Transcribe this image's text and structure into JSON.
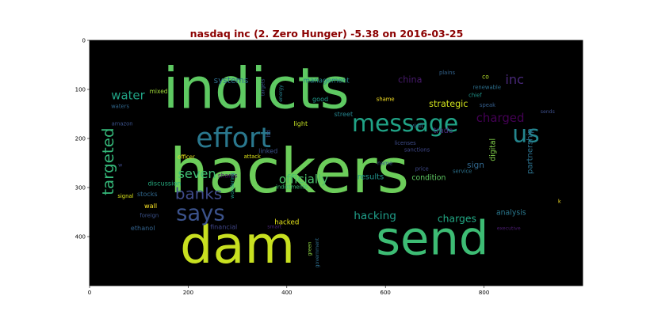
{
  "chart_data": {
    "type": "wordcloud",
    "title": "nasdaq inc (2. Zero Hunger) -5.38 on 2016-03-25",
    "title_color": "#8b0000",
    "background": "#000000",
    "grid": false,
    "xlim": [
      0,
      1000
    ],
    "ylim": [
      500,
      0
    ],
    "x_ticks": [
      0,
      200,
      400,
      600,
      800
    ],
    "y_ticks": [
      0,
      100,
      200,
      300,
      400
    ],
    "words": [
      {
        "text": "indicts",
        "x": 338,
        "y": 98,
        "size": 115,
        "color": "#5ec962",
        "rotate": false
      },
      {
        "text": "hackers",
        "x": 405,
        "y": 268,
        "size": 125,
        "color": "#6ccd5a",
        "rotate": false
      },
      {
        "text": "dam",
        "x": 300,
        "y": 418,
        "size": 105,
        "color": "#c8e020",
        "rotate": false
      },
      {
        "text": "send",
        "x": 695,
        "y": 403,
        "size": 95,
        "color": "#3dbc74",
        "rotate": false
      },
      {
        "text": "effort",
        "x": 292,
        "y": 200,
        "size": 56,
        "color": "#2a788e",
        "rotate": false
      },
      {
        "text": "message",
        "x": 640,
        "y": 170,
        "size": 48,
        "color": "#20a386",
        "rotate": false
      },
      {
        "text": "us",
        "x": 885,
        "y": 192,
        "size": 48,
        "color": "#24868e",
        "rotate": false
      },
      {
        "text": "says",
        "x": 225,
        "y": 353,
        "size": 44,
        "color": "#3b528b",
        "rotate": false
      },
      {
        "text": "banks",
        "x": 221,
        "y": 313,
        "size": 32,
        "color": "#3e4a89",
        "rotate": false
      },
      {
        "text": "targeted",
        "x": 38,
        "y": 247,
        "size": 32,
        "color": "#35b779",
        "rotate": true
      },
      {
        "text": "seven",
        "x": 218,
        "y": 272,
        "size": 26,
        "color": "#3fbc73",
        "rotate": false
      },
      {
        "text": "charged",
        "x": 833,
        "y": 158,
        "size": 24,
        "color": "#440154",
        "rotate": false
      },
      {
        "text": "inc",
        "x": 862,
        "y": 80,
        "size": 26,
        "color": "#482878",
        "rotate": false
      },
      {
        "text": "water",
        "x": 78,
        "y": 112,
        "size": 24,
        "color": "#20a486",
        "rotate": false
      },
      {
        "text": "officially",
        "x": 434,
        "y": 283,
        "size": 24,
        "color": "#4ac16d",
        "rotate": false
      },
      {
        "text": "hacking",
        "x": 579,
        "y": 358,
        "size": 22,
        "color": "#1f9e89",
        "rotate": false
      },
      {
        "text": "charges",
        "x": 745,
        "y": 363,
        "size": 20,
        "color": "#22a884",
        "rotate": false
      },
      {
        "text": "strategic",
        "x": 728,
        "y": 130,
        "size": 18,
        "color": "#d0e11c",
        "rotate": false
      },
      {
        "text": "systems",
        "x": 287,
        "y": 82,
        "size": 17,
        "color": "#2e6e8e",
        "rotate": false
      },
      {
        "text": "management",
        "x": 480,
        "y": 83,
        "size": 14,
        "color": "#26828e",
        "rotate": false
      },
      {
        "text": "china",
        "x": 650,
        "y": 81,
        "size": 18,
        "color": "#481a6c",
        "rotate": false
      },
      {
        "text": "results",
        "x": 570,
        "y": 279,
        "size": 16,
        "color": "#20938c",
        "rotate": false
      },
      {
        "text": "condition",
        "x": 688,
        "y": 281,
        "size": 15,
        "color": "#5ec962",
        "rotate": false
      },
      {
        "text": "partnership",
        "x": 894,
        "y": 226,
        "size": 16,
        "color": "#2c728e",
        "rotate": true
      },
      {
        "text": "sign",
        "x": 783,
        "y": 255,
        "size": 17,
        "color": "#31688e",
        "rotate": false
      },
      {
        "text": "digital",
        "x": 818,
        "y": 223,
        "size": 15,
        "color": "#84d44b",
        "rotate": true
      },
      {
        "text": "analysis",
        "x": 855,
        "y": 352,
        "size": 15,
        "color": "#2a788e",
        "rotate": false
      },
      {
        "text": "trade",
        "x": 717,
        "y": 185,
        "size": 15,
        "color": "#472d7b",
        "rotate": false
      },
      {
        "text": "good",
        "x": 468,
        "y": 119,
        "size": 13,
        "color": "#1f9a8a",
        "rotate": false
      },
      {
        "text": "hacked",
        "x": 400,
        "y": 372,
        "size": 14,
        "color": "#e5e419",
        "rotate": false
      },
      {
        "text": "ethanol",
        "x": 108,
        "y": 382,
        "size": 13,
        "color": "#33638d",
        "rotate": false
      },
      {
        "text": "financial",
        "x": 272,
        "y": 380,
        "size": 13,
        "color": "#404688",
        "rotate": false
      },
      {
        "text": "stocks",
        "x": 117,
        "y": 313,
        "size": 13,
        "color": "#31688e",
        "rotate": false
      },
      {
        "text": "discussion",
        "x": 152,
        "y": 291,
        "size": 13,
        "color": "#26ad81",
        "rotate": false
      },
      {
        "text": "wall",
        "x": 124,
        "y": 337,
        "size": 13,
        "color": "#fde725",
        "rotate": false
      },
      {
        "text": "street",
        "x": 515,
        "y": 150,
        "size": 13,
        "color": "#25848e",
        "rotate": false
      },
      {
        "text": "linked",
        "x": 362,
        "y": 225,
        "size": 13,
        "color": "#3b528b",
        "rotate": false
      },
      {
        "text": "light",
        "x": 428,
        "y": 169,
        "size": 13,
        "color": "#c2df23",
        "rotate": false
      },
      {
        "text": "visit",
        "x": 664,
        "y": 173,
        "size": 13,
        "color": "#2e6f8e",
        "rotate": false
      },
      {
        "text": "mixed",
        "x": 140,
        "y": 104,
        "size": 12,
        "color": "#a0da39",
        "rotate": false
      },
      {
        "text": "co",
        "x": 803,
        "y": 74,
        "size": 12,
        "color": "#b5de2b",
        "rotate": false
      },
      {
        "text": "shares",
        "x": 280,
        "y": 276,
        "size": 12,
        "color": "#471164",
        "rotate": false
      },
      {
        "text": "ltd",
        "x": 363,
        "y": 190,
        "size": 11,
        "color": "#3b528b",
        "rotate": true
      },
      {
        "text": "energy",
        "x": 388,
        "y": 108,
        "size": 10,
        "color": "#27808e",
        "rotate": true
      },
      {
        "text": "targets",
        "x": 352,
        "y": 96,
        "size": 10,
        "color": "#39568c",
        "rotate": true
      },
      {
        "text": "plains",
        "x": 725,
        "y": 66,
        "size": 11,
        "color": "#33638d",
        "rotate": false
      },
      {
        "text": "renewable",
        "x": 806,
        "y": 96,
        "size": 11,
        "color": "#2d708e",
        "rotate": false
      },
      {
        "text": "chief",
        "x": 782,
        "y": 112,
        "size": 11,
        "color": "#1f958b",
        "rotate": false
      },
      {
        "text": "speak",
        "x": 807,
        "y": 132,
        "size": 11,
        "color": "#355f8d",
        "rotate": false
      },
      {
        "text": "sends",
        "x": 929,
        "y": 146,
        "size": 10,
        "color": "#3d4e8a",
        "rotate": false
      },
      {
        "text": "shame",
        "x": 600,
        "y": 120,
        "size": 11,
        "color": "#fde725",
        "rotate": false
      },
      {
        "text": "waters",
        "x": 62,
        "y": 135,
        "size": 11,
        "color": "#31688e",
        "rotate": false
      },
      {
        "text": "amazon",
        "x": 66,
        "y": 170,
        "size": 11,
        "color": "#3b528b",
        "rotate": false
      },
      {
        "text": "licenses",
        "x": 640,
        "y": 210,
        "size": 11,
        "color": "#3e4c8a",
        "rotate": false
      },
      {
        "text": "sanctions",
        "x": 664,
        "y": 223,
        "size": 11,
        "color": "#3f4788",
        "rotate": false
      },
      {
        "text": "officer",
        "x": 196,
        "y": 238,
        "size": 11,
        "color": "#ece51b",
        "rotate": false
      },
      {
        "text": "attack",
        "x": 330,
        "y": 237,
        "size": 11,
        "color": "#dde318",
        "rotate": false
      },
      {
        "text": "name",
        "x": 599,
        "y": 251,
        "size": 11,
        "color": "#39568c",
        "rotate": false
      },
      {
        "text": "price",
        "x": 674,
        "y": 262,
        "size": 11,
        "color": "#3e4a89",
        "rotate": false
      },
      {
        "text": "service",
        "x": 756,
        "y": 267,
        "size": 11,
        "color": "#2c728e",
        "rotate": false
      },
      {
        "text": "w",
        "x": 62,
        "y": 255,
        "size": 10,
        "color": "#3e4989",
        "rotate": false
      },
      {
        "text": "signal",
        "x": 73,
        "y": 318,
        "size": 11,
        "color": "#d8e219",
        "rotate": false
      },
      {
        "text": "wondering",
        "x": 290,
        "y": 296,
        "size": 10,
        "color": "#1e9c89",
        "rotate": true
      },
      {
        "text": "indictments",
        "x": 410,
        "y": 299,
        "size": 11,
        "color": "#3aba76",
        "rotate": false
      },
      {
        "text": "government",
        "x": 462,
        "y": 433,
        "size": 10,
        "color": "#2e6e8e",
        "rotate": true
      },
      {
        "text": "green",
        "x": 447,
        "y": 425,
        "size": 10,
        "color": "#90d743",
        "rotate": true
      },
      {
        "text": "smart",
        "x": 375,
        "y": 381,
        "size": 10,
        "color": "#482475",
        "rotate": false
      },
      {
        "text": "foreign",
        "x": 121,
        "y": 357,
        "size": 11,
        "color": "#3b528b",
        "rotate": false
      },
      {
        "text": "executive",
        "x": 850,
        "y": 384,
        "size": 10,
        "color": "#481b6d",
        "rotate": false
      },
      {
        "text": "k",
        "x": 953,
        "y": 329,
        "size": 10,
        "color": "#fde725",
        "rotate": false
      }
    ]
  }
}
